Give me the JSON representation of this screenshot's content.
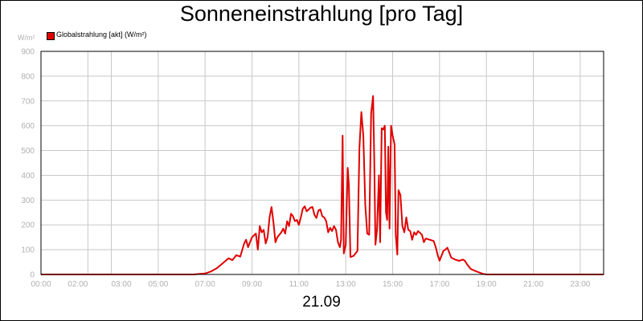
{
  "chart_data": {
    "type": "line",
    "title": "Sonneneinstrahlung [pro Tag]",
    "unit_label": "W/m²",
    "date_label": "21.09",
    "ylim": [
      0,
      900
    ],
    "y_ticks": [
      "0",
      "100",
      "200",
      "300",
      "400",
      "500",
      "600",
      "700",
      "800",
      "900"
    ],
    "xlim": [
      "00:00",
      "24:00"
    ],
    "x_ticks": [
      "00:00",
      "02:00",
      "03:00",
      "05:00",
      "07:00",
      "09:00",
      "11:00",
      "13:00",
      "15:00",
      "17:00",
      "19:00",
      "21:00",
      "23:00"
    ],
    "grid": true,
    "legend_position": "top-left",
    "series": [
      {
        "name": "Globalstrahlung [akt] (W/m²)",
        "color": "#e00000",
        "points": [
          [
            "00:00",
            0
          ],
          [
            "06:30",
            0
          ],
          [
            "07:00",
            4
          ],
          [
            "07:15",
            12
          ],
          [
            "07:30",
            25
          ],
          [
            "07:45",
            45
          ],
          [
            "08:00",
            65
          ],
          [
            "08:10",
            58
          ],
          [
            "08:20",
            78
          ],
          [
            "08:30",
            72
          ],
          [
            "08:40",
            125
          ],
          [
            "08:45",
            140
          ],
          [
            "08:50",
            110
          ],
          [
            "09:00",
            150
          ],
          [
            "09:10",
            165
          ],
          [
            "09:15",
            100
          ],
          [
            "09:20",
            195
          ],
          [
            "09:25",
            170
          ],
          [
            "09:30",
            180
          ],
          [
            "09:35",
            125
          ],
          [
            "09:40",
            150
          ],
          [
            "09:45",
            230
          ],
          [
            "09:50",
            272
          ],
          [
            "09:55",
            210
          ],
          [
            "10:00",
            130
          ],
          [
            "10:05",
            150
          ],
          [
            "10:15",
            170
          ],
          [
            "10:20",
            185
          ],
          [
            "10:25",
            165
          ],
          [
            "10:30",
            215
          ],
          [
            "10:35",
            195
          ],
          [
            "10:40",
            245
          ],
          [
            "10:45",
            235
          ],
          [
            "10:50",
            215
          ],
          [
            "10:55",
            220
          ],
          [
            "11:00",
            200
          ],
          [
            "11:05",
            230
          ],
          [
            "11:10",
            265
          ],
          [
            "11:15",
            275
          ],
          [
            "11:20",
            255
          ],
          [
            "11:25",
            262
          ],
          [
            "11:30",
            270
          ],
          [
            "11:35",
            272
          ],
          [
            "11:40",
            240
          ],
          [
            "11:45",
            228
          ],
          [
            "11:50",
            258
          ],
          [
            "11:55",
            262
          ],
          [
            "12:00",
            235
          ],
          [
            "12:05",
            230
          ],
          [
            "12:10",
            215
          ],
          [
            "12:15",
            170
          ],
          [
            "12:20",
            188
          ],
          [
            "12:25",
            175
          ],
          [
            "12:30",
            195
          ],
          [
            "12:35",
            180
          ],
          [
            "12:40",
            130
          ],
          [
            "12:45",
            110
          ],
          [
            "12:48",
            140
          ],
          [
            "12:52",
            560
          ],
          [
            "12:55",
            85
          ],
          [
            "13:00",
            120
          ],
          [
            "13:05",
            430
          ],
          [
            "13:08",
            360
          ],
          [
            "13:12",
            70
          ],
          [
            "13:20",
            75
          ],
          [
            "13:30",
            95
          ],
          [
            "13:35",
            510
          ],
          [
            "13:40",
            655
          ],
          [
            "13:45",
            560
          ],
          [
            "13:50",
            280
          ],
          [
            "13:55",
            165
          ],
          [
            "14:00",
            160
          ],
          [
            "14:05",
            650
          ],
          [
            "14:10",
            720
          ],
          [
            "14:13",
            460
          ],
          [
            "14:16",
            120
          ],
          [
            "14:20",
            180
          ],
          [
            "14:25",
            400
          ],
          [
            "14:28",
            130
          ],
          [
            "14:32",
            590
          ],
          [
            "14:36",
            585
          ],
          [
            "14:40",
            600
          ],
          [
            "14:43",
            250
          ],
          [
            "14:46",
            220
          ],
          [
            "14:49",
            515
          ],
          [
            "14:52",
            185
          ],
          [
            "14:56",
            600
          ],
          [
            "15:00",
            560
          ],
          [
            "15:05",
            525
          ],
          [
            "15:08",
            160
          ],
          [
            "15:12",
            80
          ],
          [
            "15:15",
            340
          ],
          [
            "15:20",
            320
          ],
          [
            "15:25",
            195
          ],
          [
            "15:30",
            170
          ],
          [
            "15:35",
            230
          ],
          [
            "15:40",
            180
          ],
          [
            "15:45",
            175
          ],
          [
            "15:50",
            140
          ],
          [
            "15:55",
            170
          ],
          [
            "16:00",
            160
          ],
          [
            "16:05",
            175
          ],
          [
            "16:10",
            168
          ],
          [
            "16:15",
            160
          ],
          [
            "16:20",
            130
          ],
          [
            "16:25",
            145
          ],
          [
            "16:35",
            140
          ],
          [
            "16:45",
            135
          ],
          [
            "16:50",
            112
          ],
          [
            "16:55",
            80
          ],
          [
            "17:00",
            55
          ],
          [
            "17:05",
            75
          ],
          [
            "17:10",
            95
          ],
          [
            "17:15",
            100
          ],
          [
            "17:20",
            108
          ],
          [
            "17:25",
            88
          ],
          [
            "17:30",
            68
          ],
          [
            "17:40",
            60
          ],
          [
            "17:50",
            55
          ],
          [
            "18:00",
            60
          ],
          [
            "18:05",
            55
          ],
          [
            "18:10",
            42
          ],
          [
            "18:20",
            22
          ],
          [
            "18:35",
            12
          ],
          [
            "18:50",
            3
          ],
          [
            "19:00",
            0
          ],
          [
            "24:00",
            0
          ]
        ]
      }
    ]
  }
}
